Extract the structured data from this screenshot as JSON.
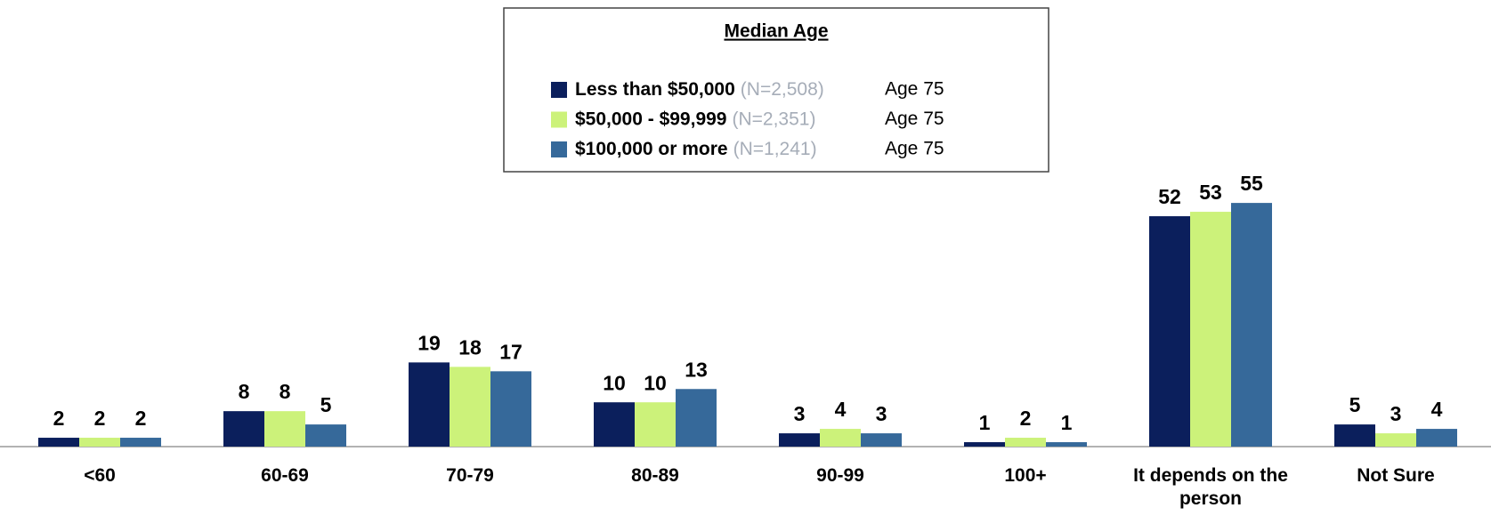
{
  "chart_data": {
    "type": "bar",
    "legend_title": "Median Age",
    "categories": [
      "<60",
      "60-69",
      "70-79",
      "80-89",
      "90-99",
      "100+",
      "It depends on the person",
      "Not Sure"
    ],
    "series": [
      {
        "name": "Less than $50,000",
        "n": "(N=2,508)",
        "median": "Age 75",
        "color": "#0b1f5c",
        "values": [
          2,
          8,
          19,
          10,
          3,
          1,
          52,
          5
        ]
      },
      {
        "name": "$50,000 - $99,999",
        "n": "(N=2,351)",
        "median": "Age 75",
        "color": "#ccf27a",
        "values": [
          2,
          8,
          18,
          10,
          4,
          2,
          53,
          3
        ]
      },
      {
        "name": "$100,000 or more",
        "n": "(N=1,241)",
        "median": "Age 75",
        "color": "#36699a",
        "values": [
          2,
          5,
          17,
          13,
          3,
          1,
          55,
          4
        ]
      }
    ],
    "legend": "top"
  }
}
